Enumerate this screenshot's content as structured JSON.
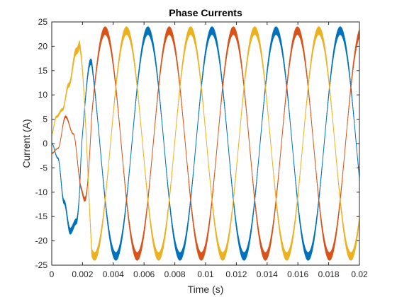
{
  "chart_data": {
    "type": "line",
    "title": "Phase Currents",
    "xlabel": "Time (s)",
    "ylabel": "Current (A)",
    "xlim": [
      0,
      0.02
    ],
    "ylim": [
      -25,
      25
    ],
    "xticks": [
      0,
      0.002,
      0.004,
      0.006,
      0.008,
      0.01,
      0.012,
      0.014,
      0.016,
      0.018,
      0.02
    ],
    "xtick_labels": [
      "0",
      "0.002",
      "0.004",
      "0.006",
      "0.008",
      "0.01",
      "0.012",
      "0.014",
      "0.016",
      "0.018",
      "0.02"
    ],
    "yticks": [
      -25,
      -20,
      -15,
      -10,
      -5,
      0,
      5,
      10,
      15,
      20,
      25
    ],
    "ytick_labels": [
      "-25",
      "-20",
      "-15",
      "-10",
      "-5",
      "0",
      "5",
      "10",
      "15",
      "20",
      "25"
    ],
    "grid": false,
    "legend": false,
    "steady_state_amplitude": 23.2,
    "frequency_hz": 240,
    "ripple_amplitude_peak": 0.8,
    "series": [
      {
        "color": "#0072BD",
        "phase_deg": -90,
        "points": [
          [
            0,
            0
          ],
          [
            0.0004,
            -3
          ],
          [
            0.0008,
            -12
          ],
          [
            0.0012,
            -18
          ],
          [
            0.0016,
            -16
          ],
          [
            0.002,
            -5
          ],
          [
            0.0031,
            12
          ],
          [
            0.0042,
            23.2
          ],
          [
            0.0052,
            12
          ],
          [
            0.0063,
            -12
          ],
          [
            0.0073,
            -23.2
          ],
          [
            0.0083,
            -12
          ],
          [
            0.0094,
            12
          ],
          [
            0.0104,
            23.2
          ],
          [
            0.0115,
            12
          ],
          [
            0.0125,
            -12
          ],
          [
            0.0135,
            -23.2
          ],
          [
            0.0146,
            -12
          ],
          [
            0.0156,
            12
          ],
          [
            0.0167,
            23.2
          ],
          [
            0.0177,
            12
          ],
          [
            0.0188,
            -12
          ],
          [
            0.0198,
            -23.2
          ],
          [
            0.02,
            -23
          ]
        ]
      },
      {
        "color": "#D95319",
        "phase_deg": 150,
        "points": [
          [
            0,
            -2
          ],
          [
            0.0004,
            -1
          ],
          [
            0.0009,
            5.5
          ],
          [
            0.0014,
            2
          ],
          [
            0.0019,
            -8
          ],
          [
            0.0024,
            -18
          ],
          [
            0.0031,
            -23.2
          ],
          [
            0.0042,
            -12
          ],
          [
            0.0052,
            12
          ],
          [
            0.0063,
            23.2
          ],
          [
            0.0073,
            12
          ],
          [
            0.0083,
            -12
          ],
          [
            0.0094,
            -23.2
          ],
          [
            0.0104,
            -12
          ],
          [
            0.0115,
            12
          ],
          [
            0.0125,
            23.2
          ],
          [
            0.0135,
            12
          ],
          [
            0.0146,
            -12
          ],
          [
            0.0156,
            -23.2
          ],
          [
            0.0167,
            -12
          ],
          [
            0.0177,
            12
          ],
          [
            0.0188,
            23.2
          ],
          [
            0.0198,
            12
          ],
          [
            0.02,
            10
          ]
        ]
      },
      {
        "color": "#EDB120",
        "phase_deg": 30,
        "points": [
          [
            0,
            2
          ],
          [
            0.0003,
            5.5
          ],
          [
            0.0007,
            7
          ],
          [
            0.0011,
            12
          ],
          [
            0.0016,
            19
          ],
          [
            0.0021,
            23.2
          ],
          [
            0.0031,
            12
          ],
          [
            0.0042,
            -12
          ],
          [
            0.0052,
            -23.2
          ],
          [
            0.0063,
            -12
          ],
          [
            0.0073,
            12
          ],
          [
            0.0083,
            23.2
          ],
          [
            0.0094,
            12
          ],
          [
            0.0104,
            -12
          ],
          [
            0.0115,
            -23.2
          ],
          [
            0.0125,
            -12
          ],
          [
            0.0135,
            12
          ],
          [
            0.0146,
            23.2
          ],
          [
            0.0156,
            12
          ],
          [
            0.0167,
            -12
          ],
          [
            0.0177,
            -23.2
          ],
          [
            0.0188,
            -12
          ],
          [
            0.0198,
            12
          ],
          [
            0.02,
            14
          ]
        ]
      }
    ]
  }
}
